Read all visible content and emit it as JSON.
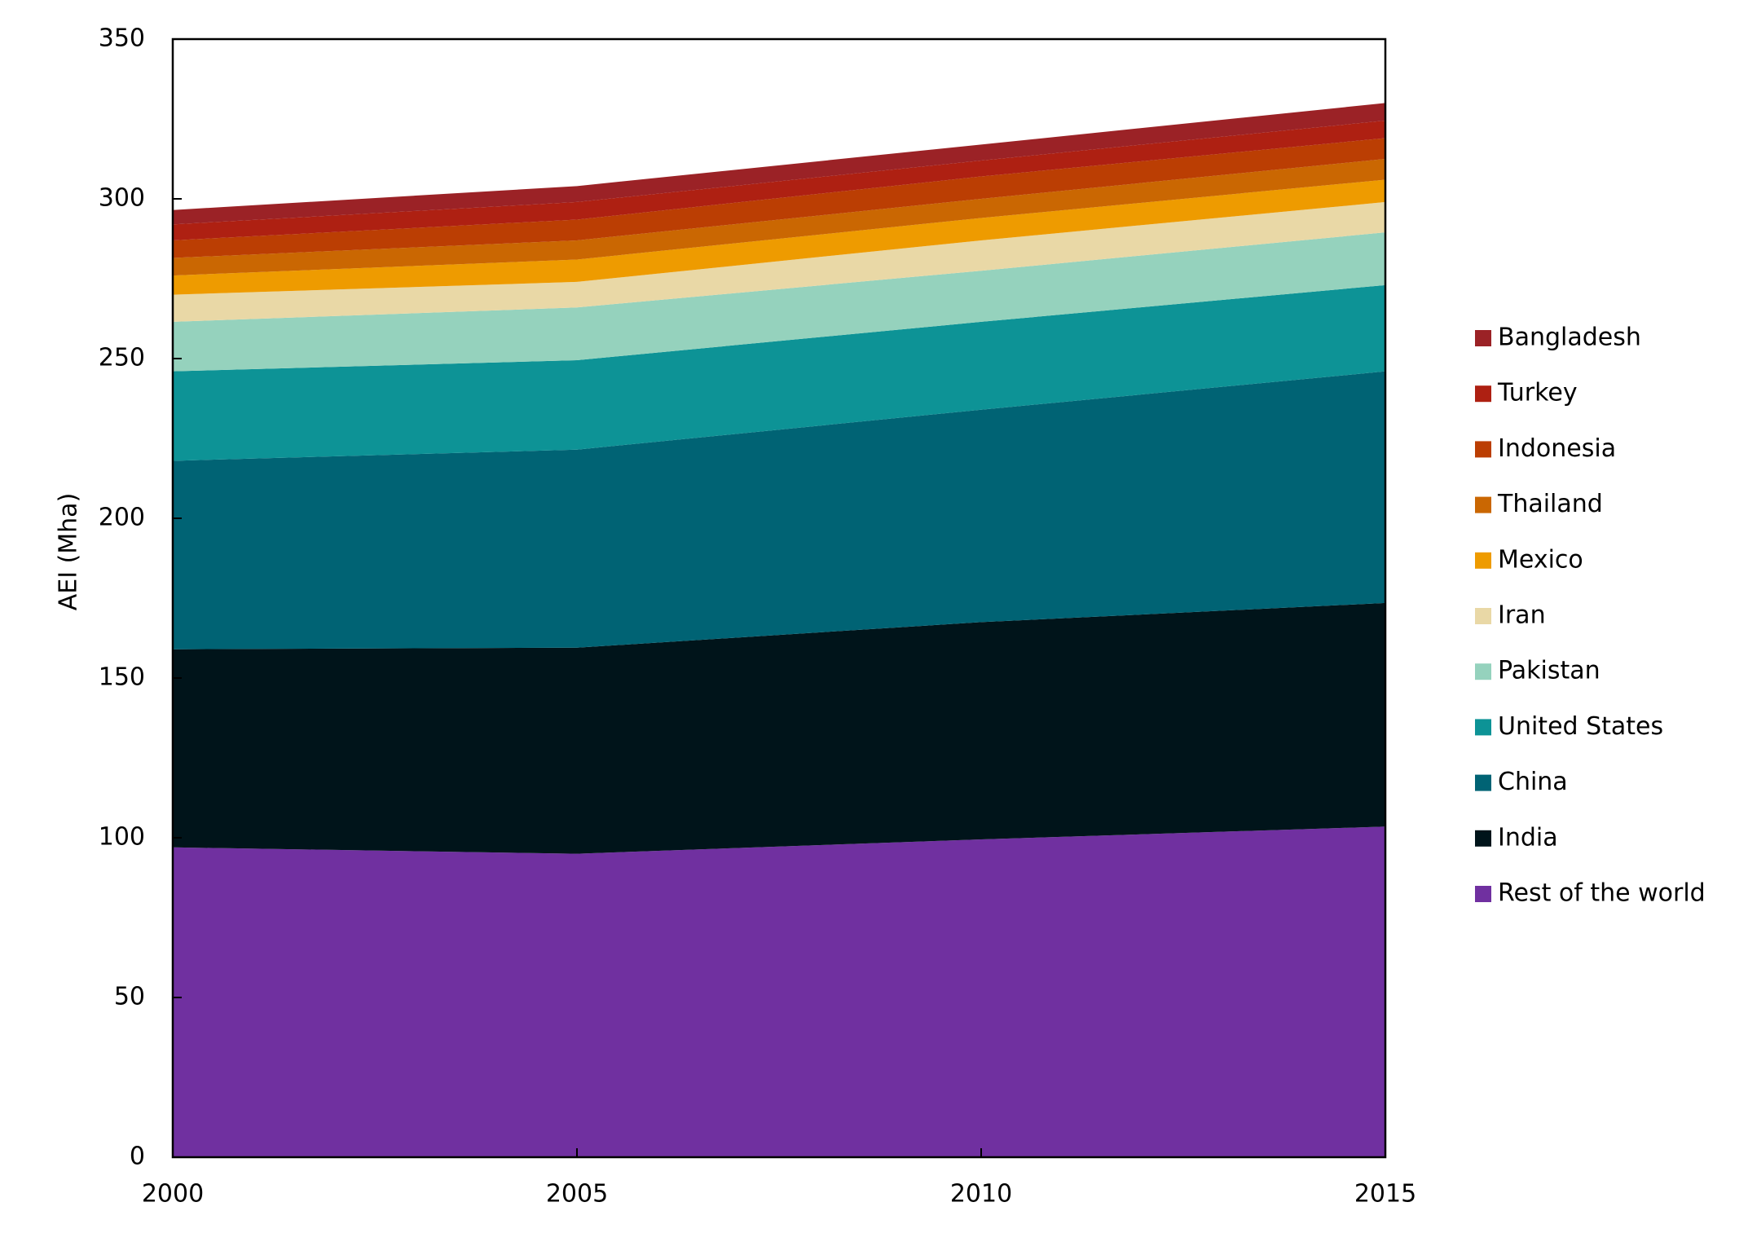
{
  "chart_data": {
    "type": "stacked-area",
    "y_label": "AEI (Mha)",
    "x": [
      2000,
      2005,
      2010,
      2015
    ],
    "xlim": [
      2000,
      2015
    ],
    "xticks": [
      2000,
      2005,
      2010,
      2015
    ],
    "ylim": [
      0,
      350
    ],
    "yticks": [
      0,
      50,
      100,
      150,
      200,
      250,
      300,
      350
    ],
    "legend": "right",
    "series": [
      {
        "name": "Rest of the world",
        "color": "#7030a0",
        "values": [
          97,
          95,
          99.5,
          103.5
        ]
      },
      {
        "name": "India",
        "color": "#00141a",
        "values": [
          62,
          64.5,
          68,
          70
        ]
      },
      {
        "name": "China",
        "color": "#006374",
        "values": [
          59,
          62,
          66.5,
          72.5
        ]
      },
      {
        "name": "United States",
        "color": "#0d9396",
        "values": [
          28,
          28,
          27.5,
          27
        ]
      },
      {
        "name": "Pakistan",
        "color": "#95d2bd",
        "values": [
          15.5,
          16.5,
          16,
          16.5
        ]
      },
      {
        "name": "Iran",
        "color": "#e9d8a6",
        "values": [
          8.5,
          8,
          9.5,
          9.5
        ]
      },
      {
        "name": "Mexico",
        "color": "#ee9b00",
        "values": [
          6,
          7,
          7,
          7
        ]
      },
      {
        "name": "Thailand",
        "color": "#ca6702",
        "values": [
          5.5,
          6,
          6,
          6.5
        ]
      },
      {
        "name": "Indonesia",
        "color": "#bb3e03",
        "values": [
          5.5,
          6.5,
          7,
          6.5
        ]
      },
      {
        "name": "Turkey",
        "color": "#ae2012",
        "values": [
          5,
          5.5,
          5,
          5.5
        ]
      },
      {
        "name": "Bangladesh",
        "color": "#9b2226",
        "values": [
          4.5,
          5,
          5,
          5.5
        ]
      }
    ]
  }
}
